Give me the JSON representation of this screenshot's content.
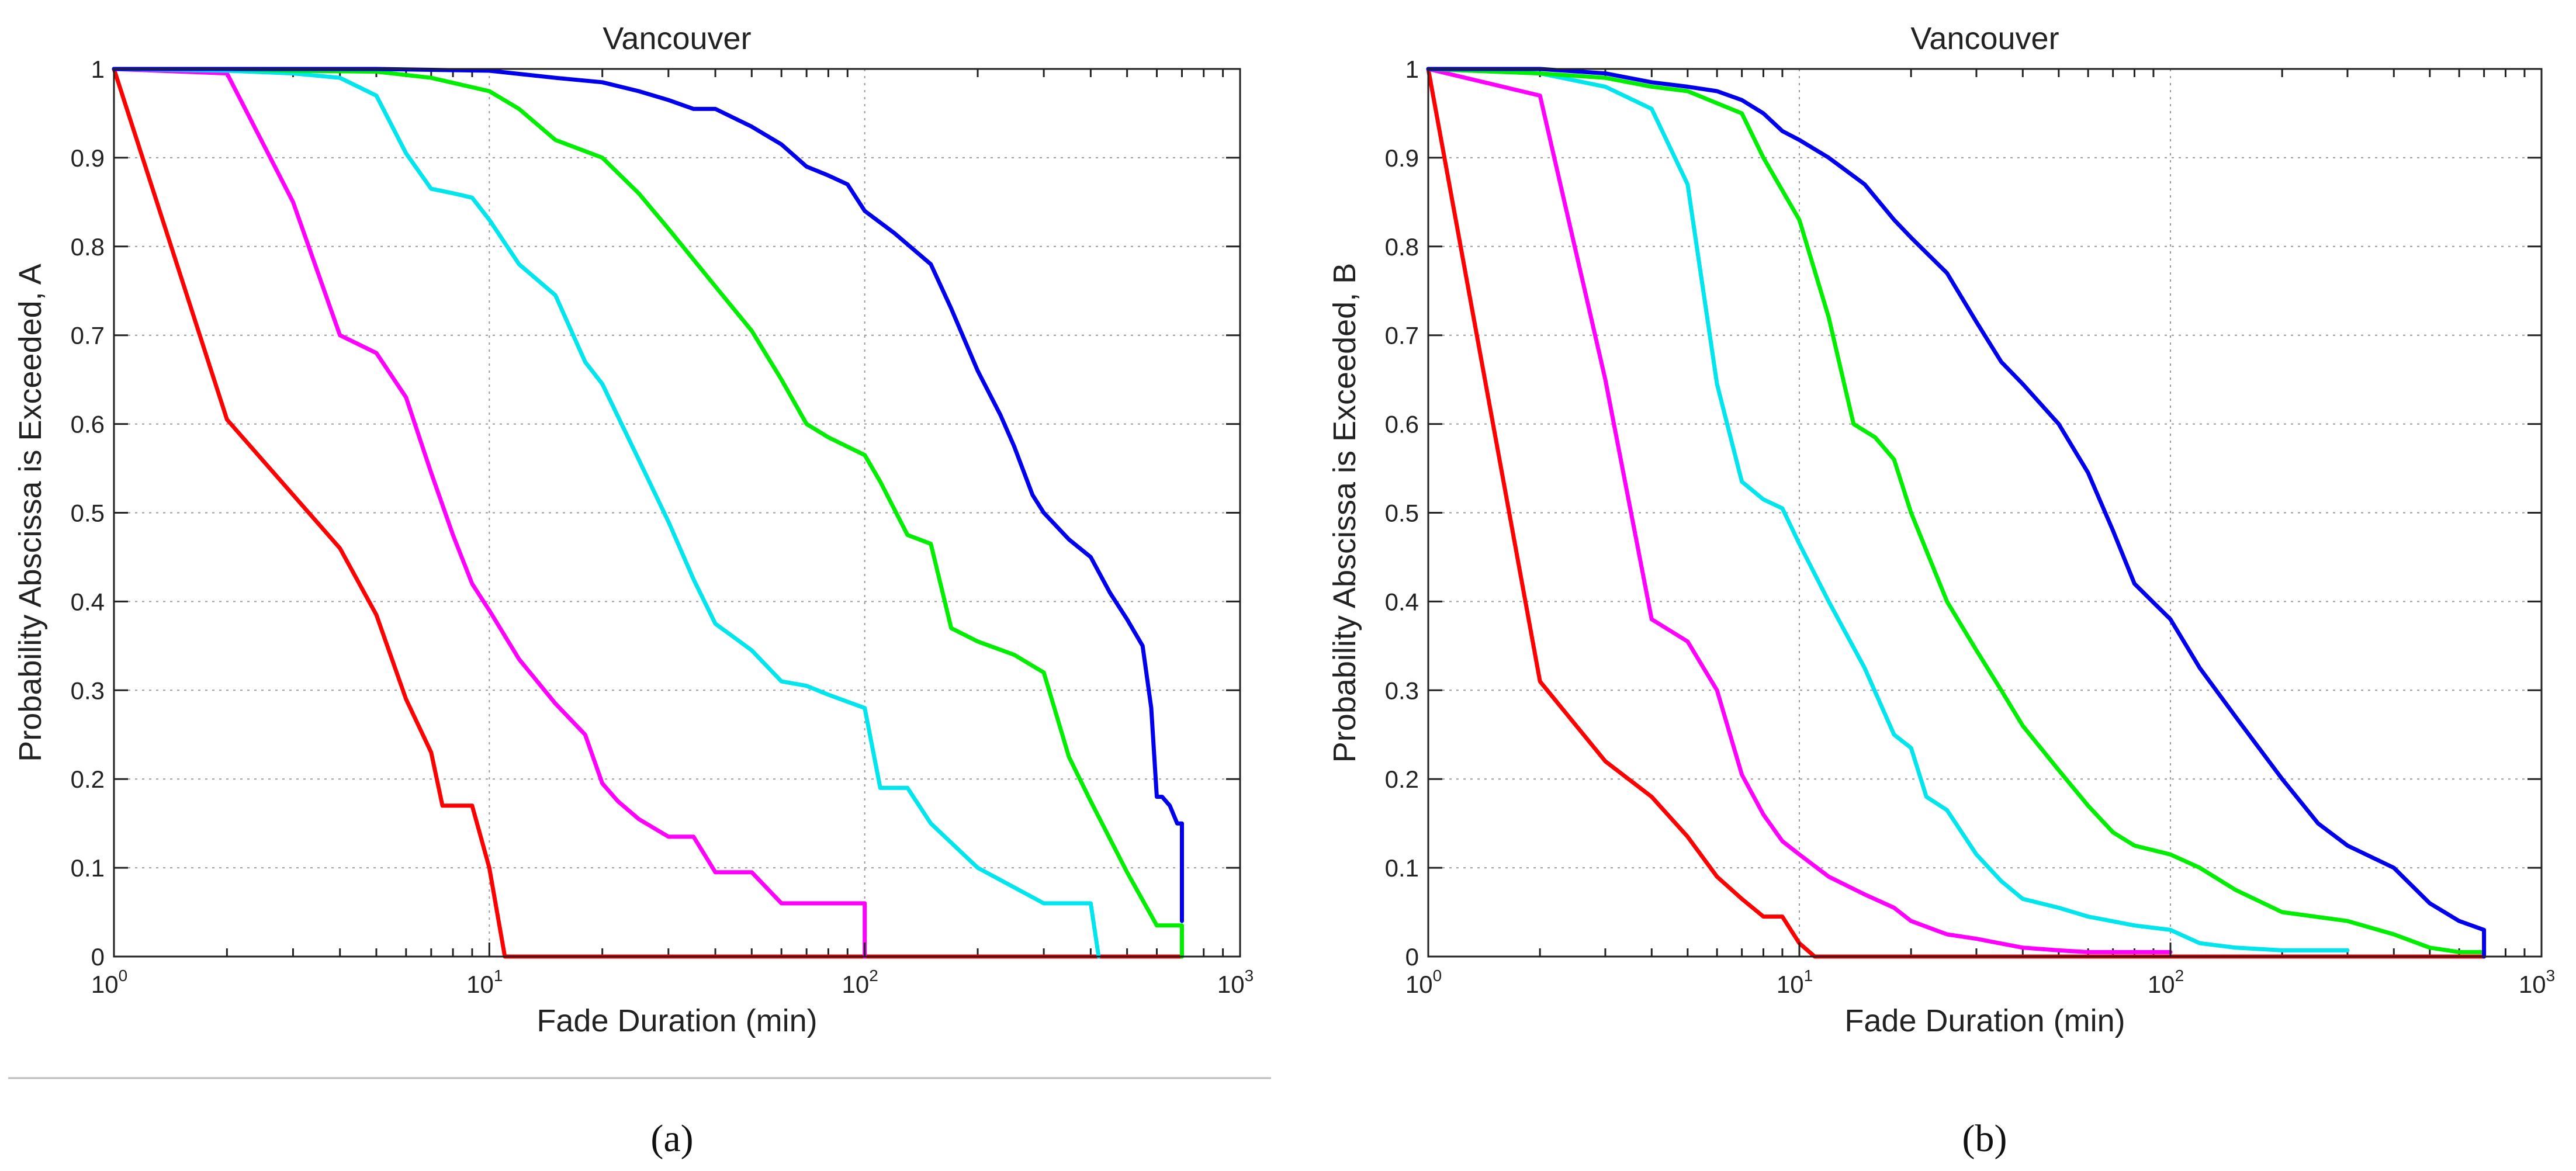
{
  "chart_data": [
    {
      "type": "line",
      "panel_label": "(a)",
      "title": "Vancouver",
      "xlabel": "Fade Duration (min)",
      "ylabel": "Probability Abscissa is Exceeded, A",
      "xscale": "log",
      "xlim": [
        1,
        1000
      ],
      "ylim": [
        0,
        1
      ],
      "grid": true,
      "xticks": [
        {
          "base": "10",
          "exp": "0"
        },
        {
          "base": "10",
          "exp": "1"
        },
        {
          "base": "10",
          "exp": "2"
        },
        {
          "base": "10",
          "exp": "3"
        }
      ],
      "yticks": [
        "0",
        "0.1",
        "0.2",
        "0.3",
        "0.4",
        "0.5",
        "0.6",
        "0.7",
        "0.8",
        "0.9",
        "1"
      ],
      "series": [
        {
          "name": "red",
          "color": "#ff0000",
          "x": [
            1,
            2,
            4,
            5,
            6,
            7,
            7.5,
            8,
            9,
            10,
            11,
            700
          ],
          "y": [
            1,
            0.605,
            0.46,
            0.385,
            0.29,
            0.23,
            0.17,
            0.17,
            0.17,
            0.1,
            0,
            0
          ]
        },
        {
          "name": "magenta",
          "color": "#ff00ff",
          "x": [
            1,
            2,
            3,
            4,
            5,
            6,
            7,
            8,
            9,
            10,
            12,
            15,
            18,
            20,
            22,
            25,
            30,
            35,
            40,
            50,
            60,
            70,
            80,
            100,
            100
          ],
          "y": [
            1,
            0.995,
            0.85,
            0.7,
            0.68,
            0.63,
            0.545,
            0.475,
            0.42,
            0.39,
            0.335,
            0.285,
            0.25,
            0.195,
            0.175,
            0.155,
            0.135,
            0.135,
            0.095,
            0.095,
            0.06,
            0.06,
            0.06,
            0.06,
            0
          ]
        },
        {
          "name": "cyan",
          "color": "#00e5ee",
          "x": [
            1,
            2,
            3,
            4,
            5,
            6,
            7,
            8,
            9,
            10,
            12,
            15,
            18,
            20,
            25,
            30,
            35,
            40,
            50,
            60,
            70,
            80,
            100,
            110,
            130,
            150,
            200,
            300,
            400,
            420
          ],
          "y": [
            1,
            0.998,
            0.995,
            0.99,
            0.97,
            0.905,
            0.865,
            0.86,
            0.855,
            0.83,
            0.78,
            0.745,
            0.67,
            0.645,
            0.56,
            0.49,
            0.425,
            0.375,
            0.345,
            0.31,
            0.305,
            0.295,
            0.28,
            0.19,
            0.19,
            0.15,
            0.1,
            0.06,
            0.06,
            0
          ]
        },
        {
          "name": "green",
          "color": "#00ee00",
          "x": [
            1,
            2,
            3,
            5,
            7,
            10,
            12,
            15,
            20,
            25,
            30,
            40,
            50,
            60,
            70,
            80,
            100,
            110,
            130,
            150,
            170,
            200,
            250,
            300,
            350,
            400,
            500,
            600,
            700,
            700
          ],
          "y": [
            1,
            1,
            0.998,
            0.997,
            0.99,
            0.975,
            0.955,
            0.92,
            0.9,
            0.86,
            0.82,
            0.755,
            0.705,
            0.65,
            0.6,
            0.585,
            0.565,
            0.535,
            0.475,
            0.465,
            0.37,
            0.355,
            0.34,
            0.32,
            0.225,
            0.175,
            0.095,
            0.035,
            0.035,
            0
          ]
        },
        {
          "name": "blue",
          "color": "#0000ee",
          "x": [
            1,
            5,
            10,
            15,
            20,
            25,
            30,
            35,
            40,
            50,
            60,
            70,
            80,
            90,
            100,
            120,
            150,
            170,
            200,
            230,
            250,
            280,
            300,
            350,
            400,
            450,
            500,
            550,
            580,
            600,
            620,
            650,
            680,
            700,
            700
          ],
          "y": [
            1,
            1,
            0.998,
            0.99,
            0.985,
            0.975,
            0.965,
            0.955,
            0.955,
            0.935,
            0.915,
            0.89,
            0.88,
            0.87,
            0.84,
            0.815,
            0.78,
            0.73,
            0.66,
            0.61,
            0.575,
            0.52,
            0.5,
            0.47,
            0.45,
            0.41,
            0.38,
            0.35,
            0.28,
            0.18,
            0.18,
            0.17,
            0.15,
            0.15,
            0.04
          ]
        }
      ]
    },
    {
      "type": "line",
      "panel_label": "(b)",
      "title": "Vancouver",
      "xlabel": "Fade Duration (min)",
      "ylabel": "Probability Abscissa is Exceeded, B",
      "xscale": "log",
      "xlim": [
        1,
        1000
      ],
      "ylim": [
        0,
        1
      ],
      "grid": true,
      "xticks": [
        {
          "base": "10",
          "exp": "0"
        },
        {
          "base": "10",
          "exp": "1"
        },
        {
          "base": "10",
          "exp": "2"
        },
        {
          "base": "10",
          "exp": "3"
        }
      ],
      "yticks": [
        "0",
        "0.1",
        "0.2",
        "0.3",
        "0.4",
        "0.5",
        "0.6",
        "0.7",
        "0.8",
        "0.9",
        "1"
      ],
      "series": [
        {
          "name": "red",
          "color": "#ff0000",
          "x": [
            1,
            2,
            3,
            4,
            5,
            6,
            7,
            8,
            9,
            10,
            11,
            700
          ],
          "y": [
            1,
            0.31,
            0.22,
            0.18,
            0.135,
            0.09,
            0.065,
            0.045,
            0.045,
            0.015,
            0,
            0
          ]
        },
        {
          "name": "magenta",
          "color": "#ff00ff",
          "x": [
            1,
            2,
            3,
            4,
            5,
            6,
            7,
            8,
            9,
            10,
            12,
            15,
            18,
            20,
            25,
            30,
            40,
            50,
            60,
            80,
            100
          ],
          "y": [
            1,
            0.97,
            0.65,
            0.38,
            0.355,
            0.3,
            0.205,
            0.16,
            0.13,
            0.115,
            0.09,
            0.07,
            0.055,
            0.04,
            0.025,
            0.02,
            0.01,
            0.007,
            0.005,
            0.005,
            0.005
          ]
        },
        {
          "name": "cyan",
          "color": "#00e5ee",
          "x": [
            1,
            2,
            3,
            4,
            5,
            6,
            7,
            8,
            9,
            10,
            12,
            15,
            18,
            20,
            22,
            25,
            30,
            35,
            40,
            50,
            60,
            80,
            100,
            120,
            150,
            200,
            300
          ],
          "y": [
            1,
            0.995,
            0.98,
            0.955,
            0.87,
            0.645,
            0.535,
            0.515,
            0.505,
            0.465,
            0.4,
            0.325,
            0.25,
            0.235,
            0.18,
            0.165,
            0.115,
            0.085,
            0.065,
            0.055,
            0.045,
            0.035,
            0.03,
            0.015,
            0.01,
            0.007,
            0.007
          ]
        },
        {
          "name": "green",
          "color": "#00ee00",
          "x": [
            1,
            2,
            3,
            4,
            5,
            7,
            8,
            10,
            12,
            14,
            16,
            18,
            20,
            25,
            30,
            35,
            40,
            50,
            60,
            70,
            80,
            100,
            120,
            150,
            200,
            300,
            400,
            500,
            600,
            700
          ],
          "y": [
            1,
            0.995,
            0.99,
            0.98,
            0.975,
            0.95,
            0.9,
            0.83,
            0.72,
            0.6,
            0.585,
            0.56,
            0.5,
            0.4,
            0.345,
            0.3,
            0.26,
            0.21,
            0.17,
            0.14,
            0.125,
            0.115,
            0.1,
            0.075,
            0.05,
            0.04,
            0.025,
            0.01,
            0.005,
            0.005
          ]
        },
        {
          "name": "blue",
          "color": "#0000ee",
          "x": [
            1,
            2,
            3,
            4,
            5,
            6,
            7,
            8,
            9,
            10,
            12,
            15,
            18,
            20,
            25,
            30,
            35,
            40,
            50,
            60,
            70,
            80,
            100,
            120,
            150,
            200,
            250,
            300,
            400,
            500,
            600,
            700,
            700
          ],
          "y": [
            1,
            1,
            0.995,
            0.985,
            0.98,
            0.975,
            0.965,
            0.95,
            0.93,
            0.92,
            0.9,
            0.87,
            0.83,
            0.81,
            0.77,
            0.715,
            0.67,
            0.645,
            0.6,
            0.545,
            0.48,
            0.42,
            0.38,
            0.325,
            0.27,
            0.2,
            0.15,
            0.125,
            0.1,
            0.06,
            0.04,
            0.03,
            0
          ]
        }
      ]
    }
  ]
}
